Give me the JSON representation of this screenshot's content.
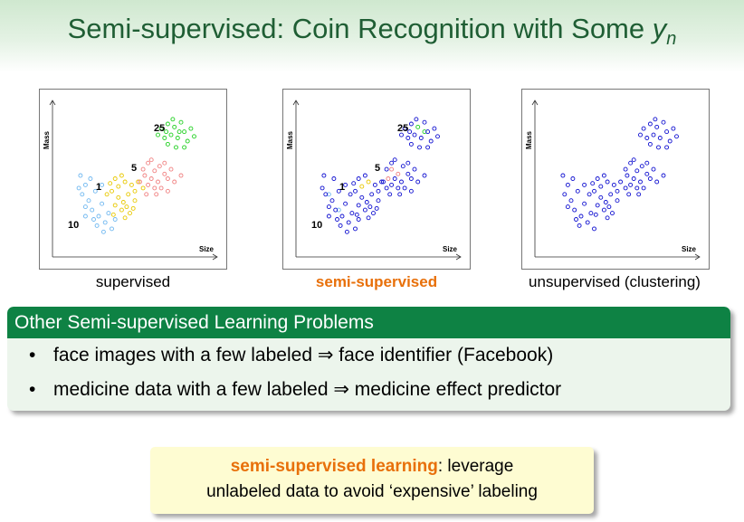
{
  "slide": {
    "title_prefix": "Semi-supervised: Coin Recognition with Some ",
    "title_var": "y",
    "title_sub": "n"
  },
  "axes": {
    "xlabel": "Size",
    "ylabel": "Mass"
  },
  "panels": [
    {
      "caption": "supervised",
      "labels": {
        "c1": "1",
        "c5": "5",
        "c10": "10",
        "c25": "25"
      }
    },
    {
      "caption": "semi-supervised",
      "labels": {
        "c1": "1",
        "c5": "5",
        "c10": "10",
        "c25": "25"
      }
    },
    {
      "caption": "unsupervised (clustering)"
    }
  ],
  "colors": {
    "title": "#1f5e34",
    "block_head": "#0e8244",
    "block_body": "#ecf5ec",
    "callout": "#fefcd2",
    "highlight": "#e8700a",
    "coin_1": "#e8c800",
    "coin_5": "#f08080",
    "coin_10": "#70b8f0",
    "coin_25": "#20d020",
    "unlabeled": "#1010d0"
  },
  "block": {
    "title": "Other Semi-supervised Learning Problems",
    "items": [
      {
        "text": "face images with a few labeled ⇒ face identifier (Facebook)"
      },
      {
        "text": "medicine data with a few labeled ⇒ medicine effect predictor"
      }
    ]
  },
  "callout": {
    "term": "semi-supervised learning",
    "rest1": ": leverage",
    "line2": "unlabeled data to avoid ‘expensive’ labeling"
  },
  "chart_data": [
    {
      "type": "scatter",
      "xlabel": "Size",
      "ylabel": "Mass",
      "series": [
        {
          "name": "1",
          "points": [
            [
              0.38,
              0.5
            ],
            [
              0.4,
              0.45
            ],
            [
              0.42,
              0.52
            ],
            [
              0.44,
              0.48
            ],
            [
              0.36,
              0.42
            ],
            [
              0.46,
              0.4
            ],
            [
              0.48,
              0.46
            ],
            [
              0.4,
              0.38
            ],
            [
              0.43,
              0.35
            ],
            [
              0.5,
              0.42
            ],
            [
              0.35,
              0.47
            ],
            [
              0.45,
              0.32
            ],
            [
              0.5,
              0.36
            ],
            [
              0.38,
              0.33
            ],
            [
              0.52,
              0.48
            ],
            [
              0.47,
              0.28
            ],
            [
              0.42,
              0.3
            ],
            [
              0.55,
              0.44
            ],
            [
              0.33,
              0.4
            ],
            [
              0.49,
              0.31
            ],
            [
              0.44,
              0.25
            ],
            [
              0.37,
              0.27
            ]
          ]
        },
        {
          "name": "5",
          "points": [
            [
              0.55,
              0.56
            ],
            [
              0.58,
              0.6
            ],
            [
              0.62,
              0.55
            ],
            [
              0.6,
              0.5
            ],
            [
              0.65,
              0.58
            ],
            [
              0.68,
              0.53
            ],
            [
              0.64,
              0.48
            ],
            [
              0.58,
              0.46
            ],
            [
              0.7,
              0.5
            ],
            [
              0.62,
              0.44
            ],
            [
              0.66,
              0.44
            ],
            [
              0.72,
              0.56
            ],
            [
              0.6,
              0.62
            ],
            [
              0.56,
              0.52
            ],
            [
              0.68,
              0.6
            ],
            [
              0.74,
              0.48
            ],
            [
              0.63,
              0.4
            ],
            [
              0.57,
              0.4
            ],
            [
              0.53,
              0.48
            ],
            [
              0.78,
              0.52
            ],
            [
              0.7,
              0.42
            ]
          ]
        },
        {
          "name": "10",
          "points": [
            [
              0.17,
              0.52
            ],
            [
              0.2,
              0.46
            ],
            [
              0.23,
              0.5
            ],
            [
              0.18,
              0.4
            ],
            [
              0.22,
              0.36
            ],
            [
              0.26,
              0.42
            ],
            [
              0.2,
              0.32
            ],
            [
              0.24,
              0.3
            ],
            [
              0.28,
              0.26
            ],
            [
              0.3,
              0.34
            ],
            [
              0.32,
              0.22
            ],
            [
              0.34,
              0.28
            ],
            [
              0.27,
              0.2
            ],
            [
              0.36,
              0.18
            ],
            [
              0.16,
              0.44
            ],
            [
              0.3,
              0.46
            ],
            [
              0.38,
              0.24
            ],
            [
              0.25,
              0.24
            ],
            [
              0.31,
              0.16
            ],
            [
              0.2,
              0.26
            ]
          ]
        },
        {
          "name": "25",
          "points": [
            [
              0.66,
              0.82
            ],
            [
              0.7,
              0.85
            ],
            [
              0.74,
              0.83
            ],
            [
              0.72,
              0.78
            ],
            [
              0.76,
              0.76
            ],
            [
              0.8,
              0.8
            ],
            [
              0.68,
              0.76
            ],
            [
              0.78,
              0.86
            ],
            [
              0.82,
              0.74
            ],
            [
              0.7,
              0.72
            ],
            [
              0.75,
              0.7
            ],
            [
              0.84,
              0.82
            ],
            [
              0.64,
              0.78
            ],
            [
              0.8,
              0.7
            ],
            [
              0.73,
              0.88
            ],
            [
              0.86,
              0.77
            ],
            [
              0.77,
              0.8
            ],
            [
              0.69,
              0.8
            ]
          ]
        }
      ]
    },
    {
      "type": "scatter",
      "xlabel": "Size",
      "ylabel": "Mass",
      "series": [
        {
          "name": "1",
          "points": [
            [
              0.4,
              0.45
            ],
            [
              0.44,
              0.48
            ]
          ]
        },
        {
          "name": "5",
          "points": [
            [
              0.58,
              0.56
            ],
            [
              0.62,
              0.53
            ],
            [
              0.56,
              0.5
            ]
          ]
        },
        {
          "name": "10",
          "points": [
            [
              0.2,
              0.4
            ],
            [
              0.26,
              0.3
            ]
          ]
        },
        {
          "name": "25",
          "points": [
            [
              0.74,
              0.83
            ],
            [
              0.78,
              0.8
            ]
          ]
        },
        {
          "name": "unlabeled",
          "points": [
            [
              0.38,
              0.5
            ],
            [
              0.42,
              0.52
            ],
            [
              0.36,
              0.42
            ],
            [
              0.46,
              0.4
            ],
            [
              0.48,
              0.46
            ],
            [
              0.4,
              0.38
            ],
            [
              0.43,
              0.35
            ],
            [
              0.5,
              0.42
            ],
            [
              0.35,
              0.47
            ],
            [
              0.45,
              0.32
            ],
            [
              0.5,
              0.36
            ],
            [
              0.38,
              0.33
            ],
            [
              0.52,
              0.48
            ],
            [
              0.47,
              0.28
            ],
            [
              0.42,
              0.3
            ],
            [
              0.55,
              0.44
            ],
            [
              0.33,
              0.4
            ],
            [
              0.49,
              0.31
            ],
            [
              0.44,
              0.25
            ],
            [
              0.37,
              0.27
            ],
            [
              0.55,
              0.56
            ],
            [
              0.58,
              0.6
            ],
            [
              0.6,
              0.5
            ],
            [
              0.65,
              0.58
            ],
            [
              0.68,
              0.53
            ],
            [
              0.64,
              0.48
            ],
            [
              0.58,
              0.46
            ],
            [
              0.7,
              0.5
            ],
            [
              0.62,
              0.44
            ],
            [
              0.66,
              0.44
            ],
            [
              0.72,
              0.56
            ],
            [
              0.6,
              0.62
            ],
            [
              0.68,
              0.6
            ],
            [
              0.74,
              0.48
            ],
            [
              0.63,
              0.4
            ],
            [
              0.57,
              0.4
            ],
            [
              0.53,
              0.48
            ],
            [
              0.78,
              0.52
            ],
            [
              0.7,
              0.42
            ],
            [
              0.17,
              0.52
            ],
            [
              0.23,
              0.5
            ],
            [
              0.18,
              0.4
            ],
            [
              0.22,
              0.36
            ],
            [
              0.26,
              0.42
            ],
            [
              0.2,
              0.32
            ],
            [
              0.24,
              0.3
            ],
            [
              0.28,
              0.26
            ],
            [
              0.3,
              0.34
            ],
            [
              0.32,
              0.22
            ],
            [
              0.34,
              0.28
            ],
            [
              0.27,
              0.2
            ],
            [
              0.36,
              0.18
            ],
            [
              0.16,
              0.44
            ],
            [
              0.3,
              0.46
            ],
            [
              0.38,
              0.24
            ],
            [
              0.25,
              0.24
            ],
            [
              0.31,
              0.16
            ],
            [
              0.2,
              0.26
            ],
            [
              0.66,
              0.82
            ],
            [
              0.7,
              0.85
            ],
            [
              0.72,
              0.78
            ],
            [
              0.76,
              0.76
            ],
            [
              0.8,
              0.8
            ],
            [
              0.68,
              0.76
            ],
            [
              0.78,
              0.86
            ],
            [
              0.82,
              0.74
            ],
            [
              0.7,
              0.72
            ],
            [
              0.75,
              0.7
            ],
            [
              0.84,
              0.82
            ],
            [
              0.64,
              0.78
            ],
            [
              0.8,
              0.7
            ],
            [
              0.73,
              0.88
            ],
            [
              0.86,
              0.77
            ],
            [
              0.69,
              0.8
            ]
          ]
        }
      ]
    },
    {
      "type": "scatter",
      "xlabel": "Size",
      "ylabel": "Mass",
      "series": [
        {
          "name": "unlabeled",
          "points": [
            [
              0.38,
              0.5
            ],
            [
              0.4,
              0.45
            ],
            [
              0.42,
              0.52
            ],
            [
              0.44,
              0.48
            ],
            [
              0.36,
              0.42
            ],
            [
              0.46,
              0.4
            ],
            [
              0.48,
              0.46
            ],
            [
              0.4,
              0.38
            ],
            [
              0.43,
              0.35
            ],
            [
              0.5,
              0.42
            ],
            [
              0.35,
              0.47
            ],
            [
              0.45,
              0.32
            ],
            [
              0.5,
              0.36
            ],
            [
              0.38,
              0.33
            ],
            [
              0.52,
              0.48
            ],
            [
              0.47,
              0.28
            ],
            [
              0.42,
              0.3
            ],
            [
              0.55,
              0.44
            ],
            [
              0.33,
              0.4
            ],
            [
              0.44,
              0.25
            ],
            [
              0.37,
              0.27
            ],
            [
              0.55,
              0.56
            ],
            [
              0.58,
              0.6
            ],
            [
              0.62,
              0.55
            ],
            [
              0.6,
              0.5
            ],
            [
              0.65,
              0.58
            ],
            [
              0.68,
              0.53
            ],
            [
              0.64,
              0.48
            ],
            [
              0.58,
              0.46
            ],
            [
              0.7,
              0.5
            ],
            [
              0.62,
              0.44
            ],
            [
              0.66,
              0.44
            ],
            [
              0.72,
              0.56
            ],
            [
              0.6,
              0.62
            ],
            [
              0.56,
              0.52
            ],
            [
              0.68,
              0.6
            ],
            [
              0.74,
              0.48
            ],
            [
              0.63,
              0.4
            ],
            [
              0.57,
              0.4
            ],
            [
              0.78,
              0.52
            ],
            [
              0.17,
              0.52
            ],
            [
              0.2,
              0.46
            ],
            [
              0.23,
              0.5
            ],
            [
              0.18,
              0.4
            ],
            [
              0.22,
              0.36
            ],
            [
              0.26,
              0.42
            ],
            [
              0.2,
              0.32
            ],
            [
              0.24,
              0.3
            ],
            [
              0.28,
              0.26
            ],
            [
              0.3,
              0.34
            ],
            [
              0.32,
              0.22
            ],
            [
              0.34,
              0.28
            ],
            [
              0.27,
              0.2
            ],
            [
              0.36,
              0.18
            ],
            [
              0.3,
              0.46
            ],
            [
              0.25,
              0.24
            ],
            [
              0.66,
              0.82
            ],
            [
              0.7,
              0.85
            ],
            [
              0.74,
              0.83
            ],
            [
              0.72,
              0.78
            ],
            [
              0.76,
              0.76
            ],
            [
              0.8,
              0.8
            ],
            [
              0.68,
              0.76
            ],
            [
              0.78,
              0.86
            ],
            [
              0.82,
              0.74
            ],
            [
              0.7,
              0.72
            ],
            [
              0.75,
              0.7
            ],
            [
              0.84,
              0.82
            ],
            [
              0.64,
              0.78
            ],
            [
              0.8,
              0.7
            ],
            [
              0.73,
              0.88
            ],
            [
              0.86,
              0.77
            ]
          ]
        }
      ]
    }
  ]
}
